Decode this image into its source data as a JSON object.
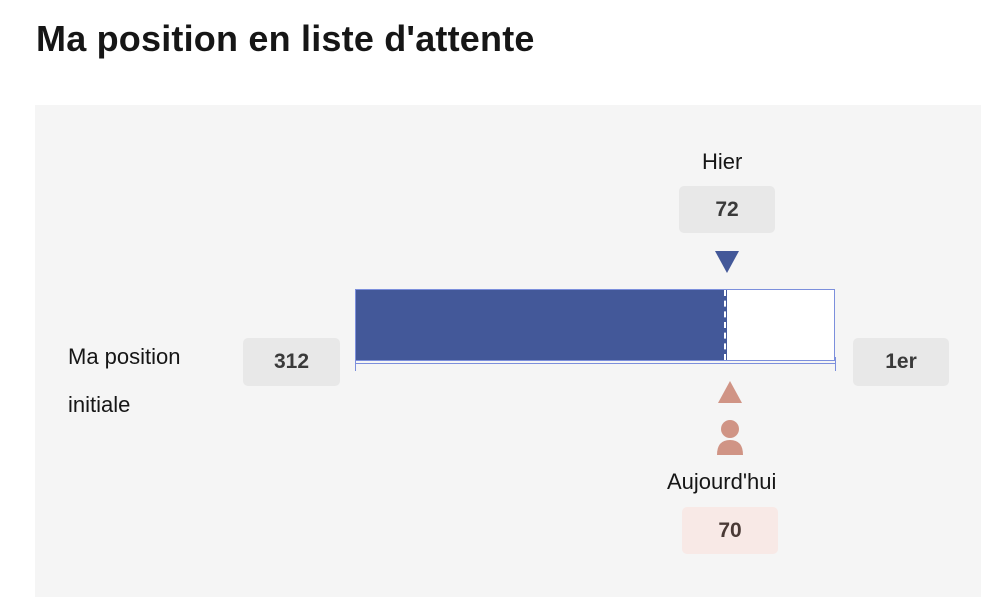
{
  "page": {
    "title": "Ma position en liste d'attente"
  },
  "waitlist": {
    "initial_label_line1": "Ma position",
    "initial_label_line2": "initiale",
    "initial_position": "312",
    "end_position": "1er",
    "yesterday_label": "Hier",
    "yesterday_position": "72",
    "today_label": "Aujourd'hui",
    "today_position": "70",
    "progress_fraction": 0.776,
    "yesterday_fraction": 0.77
  },
  "colors": {
    "bar_fill": "#435899",
    "bar_border": "#7c8fdc",
    "yesterday_marker": "#435899",
    "today_marker": "#d09485",
    "panel_bg": "#f5f5f5"
  },
  "icons": {
    "yesterday_marker": "triangle-down-icon",
    "today_marker": "triangle-up-icon",
    "person": "person-icon"
  }
}
